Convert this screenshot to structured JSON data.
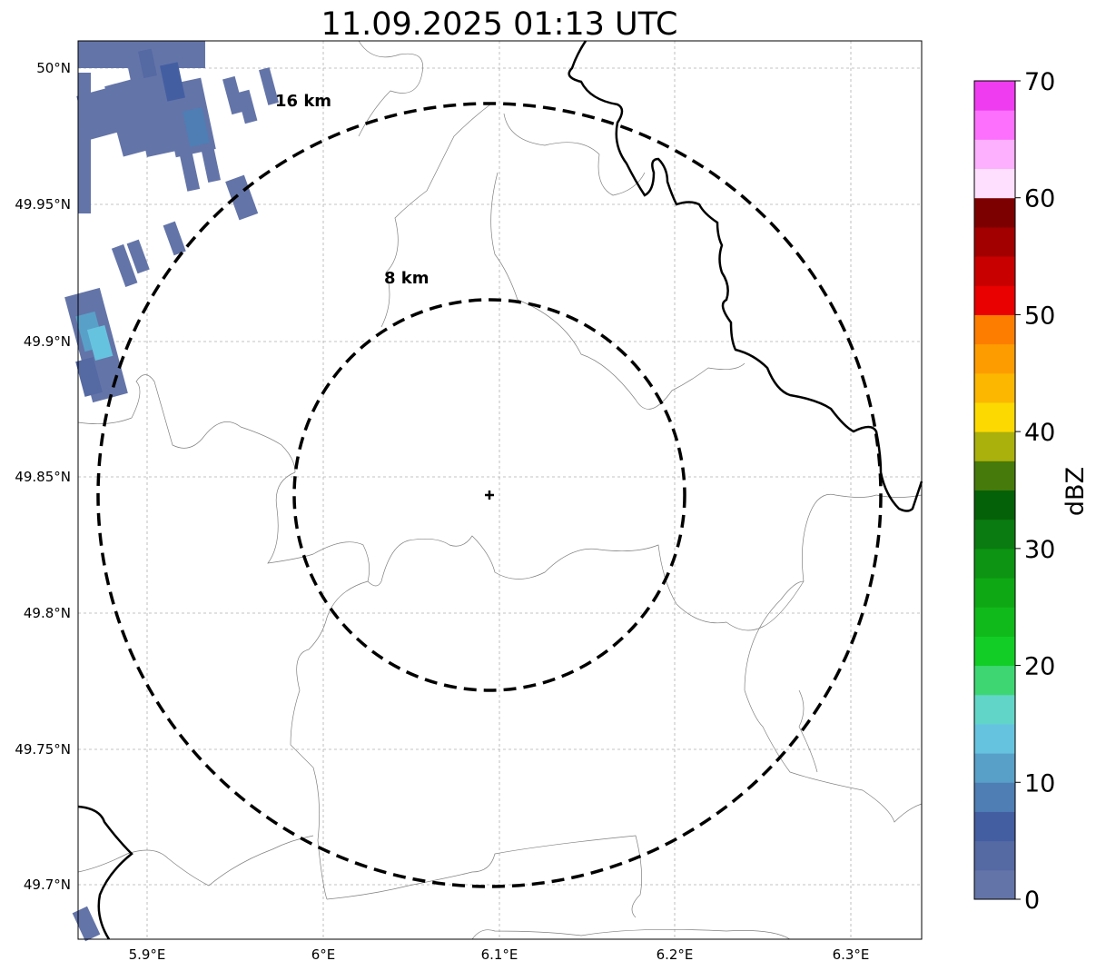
{
  "title": "11.09.2025 01:13 UTC",
  "map": {
    "lon_ticks": [
      "5.9°E",
      "6°E",
      "6.1°E",
      "6.2°E",
      "6.3°E"
    ],
    "lat_ticks": [
      "50°N",
      "49.95°N",
      "49.9°N",
      "49.85°N",
      "49.8°N",
      "49.75°N",
      "49.7°N"
    ],
    "lon_range": [
      5.86,
      6.34
    ],
    "lat_range": [
      49.68,
      50.01
    ],
    "radar_site": {
      "lon": 6.094,
      "lat": 49.843
    },
    "range_rings": [
      {
        "label": "8 km",
        "radius_km": 8
      },
      {
        "label": "16 km",
        "radius_km": 16
      }
    ],
    "gridlines": true
  },
  "colorbar": {
    "label": "dBZ",
    "ticks": [
      "0",
      "10",
      "20",
      "30",
      "40",
      "50",
      "60",
      "70"
    ],
    "range": [
      0,
      70
    ],
    "colors": [
      "#6374a8",
      "#5569a3",
      "#445ea2",
      "#4e7eb4",
      "#58a0c8",
      "#66c3e0",
      "#61d6c8",
      "#3dd673",
      "#12cd25",
      "#10ba1a",
      "#0ea814",
      "#0c9412",
      "#0a7b10",
      "#056108",
      "#467a0a",
      "#aab00c",
      "#fcd900",
      "#fcb700",
      "#fd9c00",
      "#fd7d00",
      "#e90000",
      "#c80000",
      "#a20000",
      "#7c0000",
      "#fee0fe",
      "#fdb0fd",
      "#fd70fd",
      "#f03cf0"
    ]
  }
}
